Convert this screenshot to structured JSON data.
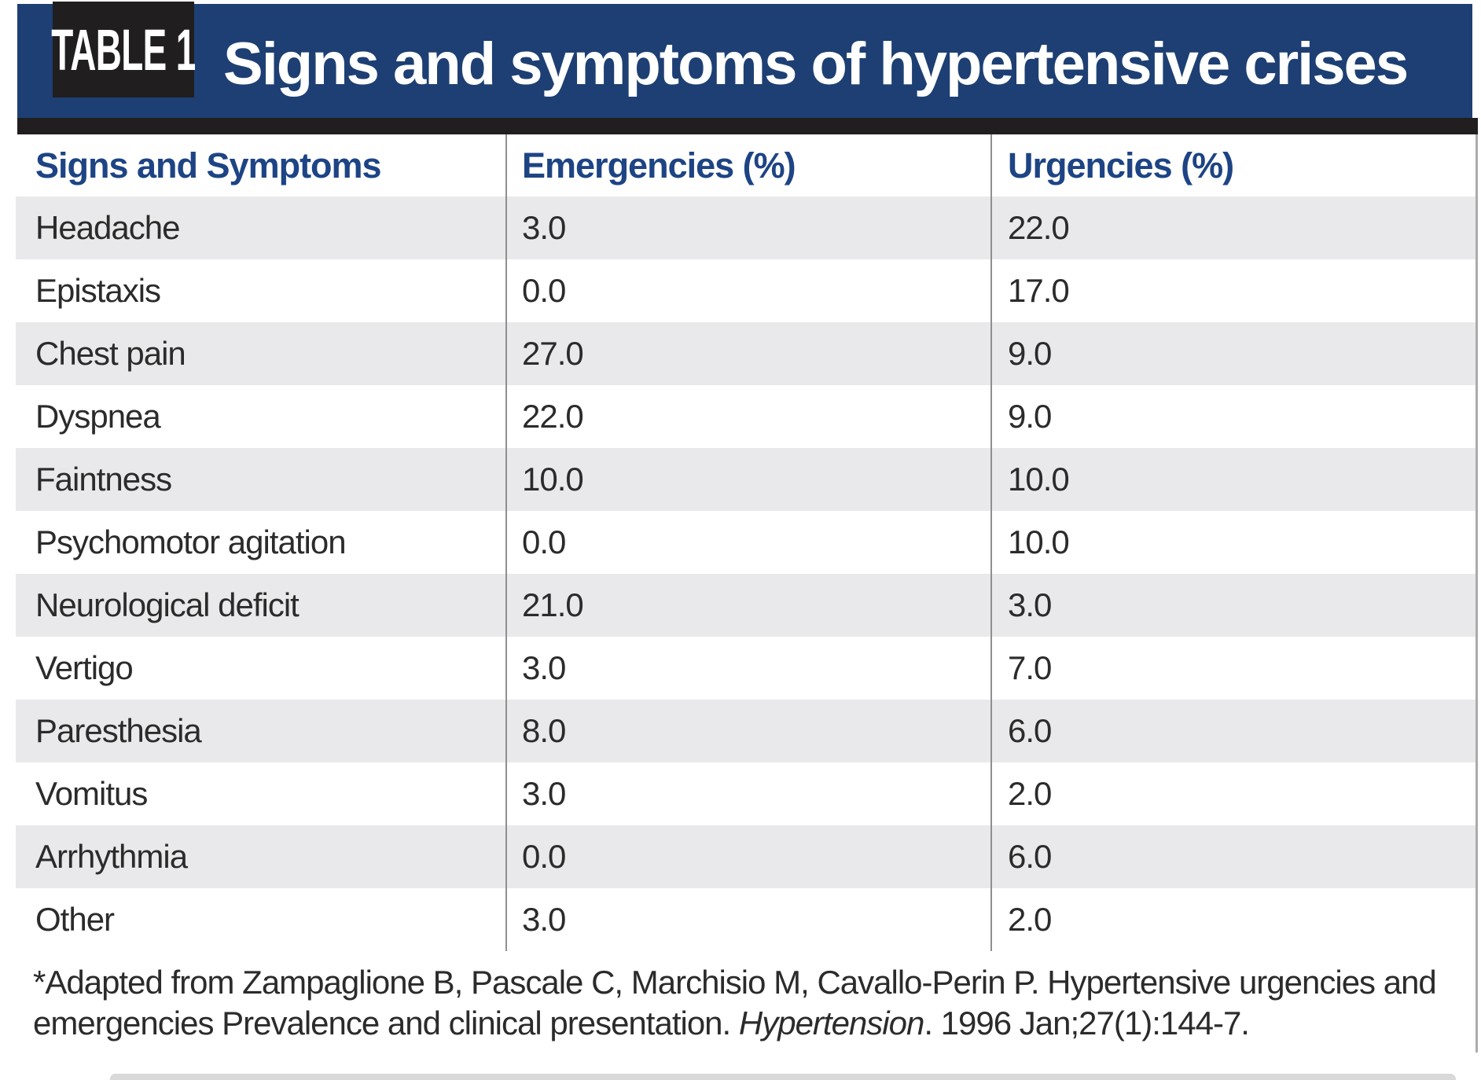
{
  "banner": {
    "tag": "TABLE 1",
    "title": "Signs and symptoms of hypertensive crises"
  },
  "table": {
    "columns": [
      "Signs and Symptoms",
      "Emergencies (%)",
      "Urgencies (%)"
    ],
    "rows": [
      {
        "symptom": "Headache",
        "emergencies": "3.0",
        "urgencies": "22.0"
      },
      {
        "symptom": "Epistaxis",
        "emergencies": "0.0",
        "urgencies": "17.0"
      },
      {
        "symptom": "Chest pain",
        "emergencies": "27.0",
        "urgencies": "9.0"
      },
      {
        "symptom": "Dyspnea",
        "emergencies": "22.0",
        "urgencies": "9.0"
      },
      {
        "symptom": "Faintness",
        "emergencies": "10.0",
        "urgencies": "10.0"
      },
      {
        "symptom": "Psychomotor agitation",
        "emergencies": "0.0",
        "urgencies": "10.0"
      },
      {
        "symptom": "Neurological deficit",
        "emergencies": "21.0",
        "urgencies": "3.0"
      },
      {
        "symptom": "Vertigo",
        "emergencies": "3.0",
        "urgencies": "7.0"
      },
      {
        "symptom": "Paresthesia",
        "emergencies": "8.0",
        "urgencies": "6.0"
      },
      {
        "symptom": "Vomitus",
        "emergencies": "3.0",
        "urgencies": "2.0"
      },
      {
        "symptom": "Arrhythmia",
        "emergencies": "0.0",
        "urgencies": "6.0"
      },
      {
        "symptom": "Other",
        "emergencies": "3.0",
        "urgencies": "2.0"
      }
    ]
  },
  "footnote": {
    "line1": "*Adapted from Zampaglione B, Pascale C, Marchisio M, Cavallo-Perin P. Hypertensive urgencies and",
    "line2_pre": "emergencies Prevalence and clinical presentation. ",
    "line2_italic": "Hypertension",
    "line2_post": ". 1996 Jan;27(1):144-7."
  },
  "colors": {
    "banner_blue": "#1d3f73",
    "tag_black": "#211e1f",
    "header_text_blue": "#1d4484",
    "stripe_gray": "#e9e9eb",
    "body_text": "#2b2b2b",
    "divider_gray": "#8f8f8f"
  }
}
